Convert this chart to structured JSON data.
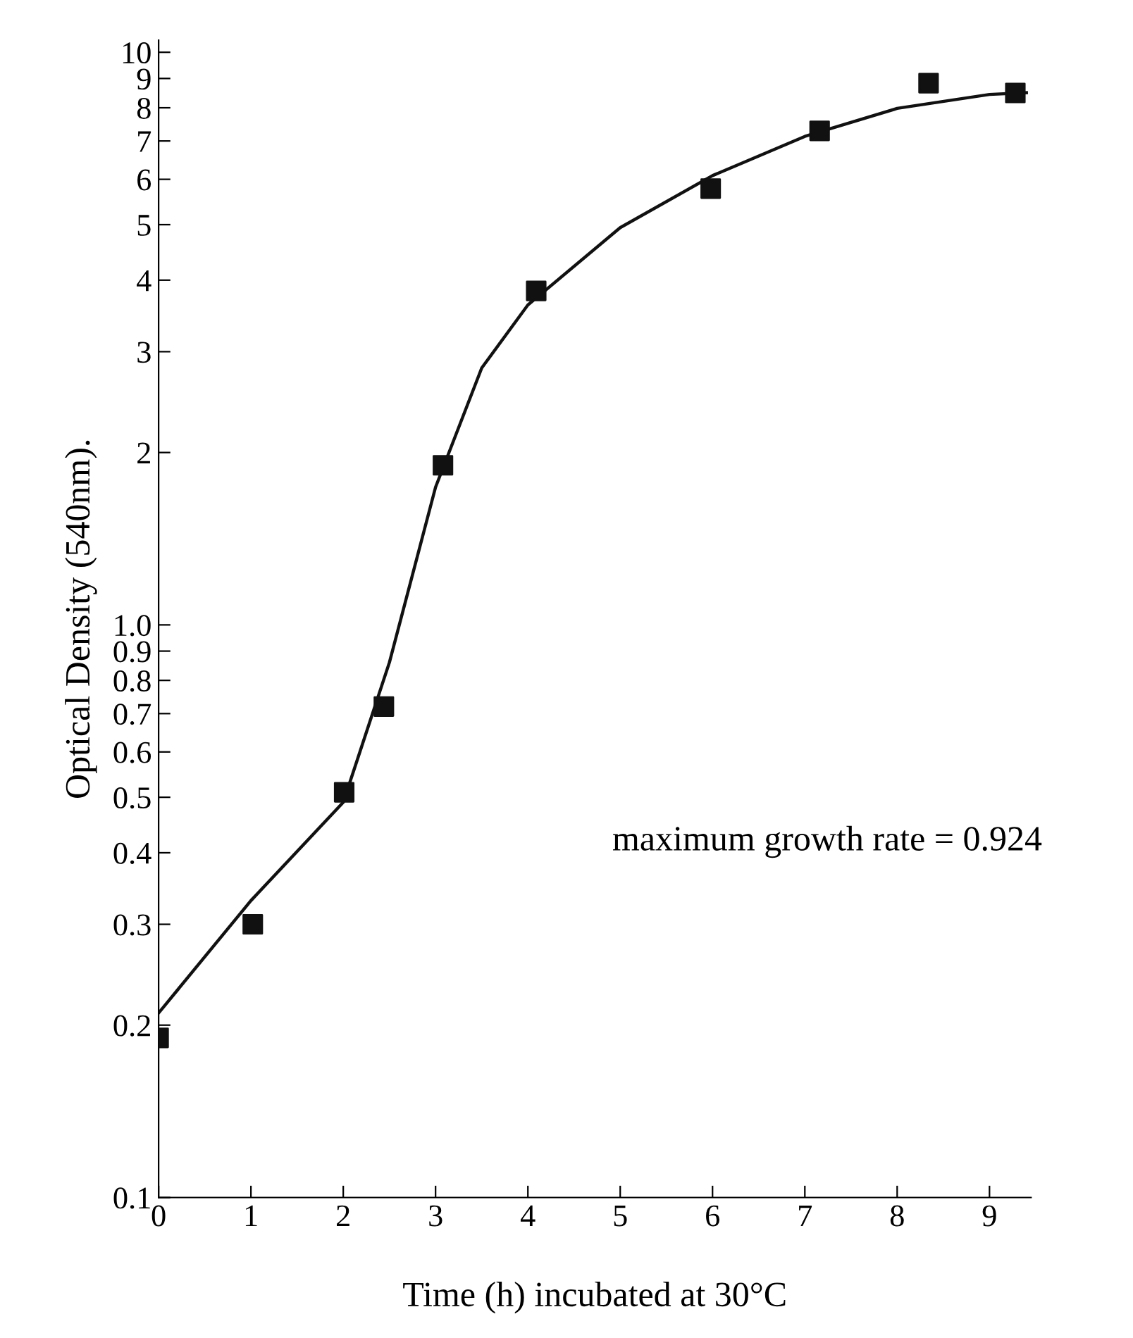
{
  "chart_data": {
    "type": "scatter",
    "xlabel": "Time (h) incubated at 30°C",
    "ylabel": "Optical Density (540nm).",
    "log": "y",
    "xlim": [
      0,
      9.45
    ],
    "ylim": [
      0.1,
      10.5
    ],
    "xticks": [
      0,
      1,
      2,
      3,
      4,
      5,
      6,
      7,
      8,
      9
    ],
    "yticks": [
      0.1,
      0.2,
      0.3,
      0.4,
      0.5,
      0.6,
      0.7,
      0.8,
      0.9,
      {
        "value": 1.0,
        "label": "1.0"
      },
      2,
      3,
      4,
      5,
      6,
      7,
      8,
      9,
      10
    ],
    "grid": false,
    "legend": false,
    "annotations": [
      "maximum growth rate = 0.924"
    ],
    "series": [
      {
        "color": "#111111",
        "marker": "square",
        "x": [
          0,
          1.02,
          2.01,
          2.44,
          3.08,
          4.09,
          5.98,
          7.16,
          8.34,
          9.28
        ],
        "values": [
          0.19,
          0.3,
          0.51,
          0.72,
          1.9,
          3.83,
          5.78,
          7.29,
          8.83,
          8.49
        ]
      },
      {
        "type": "line",
        "color": "#111111",
        "line_style": "solid",
        "x": [
          0,
          1,
          2,
          2.5,
          3,
          3.5,
          4,
          5,
          6,
          7,
          8,
          9,
          9.4
        ],
        "values": [
          0.21,
          0.33,
          0.49,
          0.86,
          1.74,
          2.81,
          3.62,
          4.94,
          6.09,
          7.13,
          7.98,
          8.44,
          8.5
        ]
      }
    ]
  }
}
